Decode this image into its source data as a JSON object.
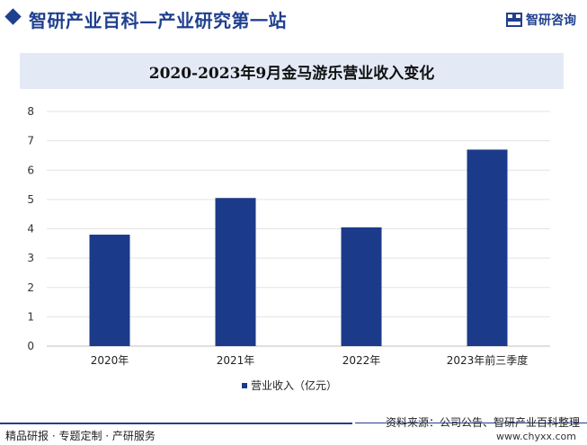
{
  "header": {
    "site_title": "智研产业百科—产业研究第一站",
    "brand_name": "智研咨询"
  },
  "colors": {
    "accent": "#1f3f8f",
    "bar": "#1b3a8a",
    "title_band": "#e3eaf6"
  },
  "chart_data": {
    "type": "bar",
    "title": "2020-2023年9月金马游乐营业收入变化",
    "categories": [
      "2020年",
      "2021年",
      "2022年",
      "2023年前三季度"
    ],
    "series": [
      {
        "name": "营业收入（亿元）",
        "values": [
          3.8,
          5.05,
          4.05,
          6.7
        ]
      }
    ],
    "ylim": [
      0,
      8
    ],
    "yticks": [
      0,
      1,
      2,
      3,
      4,
      5,
      6,
      7,
      8
    ],
    "xlabel": "",
    "ylabel": "",
    "grid": true,
    "legend_position": "bottom"
  },
  "footer": {
    "left": "精品研报 · 专题定制 · 产研服务",
    "source": "资料来源：公司公告、智研产业百科整理",
    "url": "www.chyxx.com"
  }
}
